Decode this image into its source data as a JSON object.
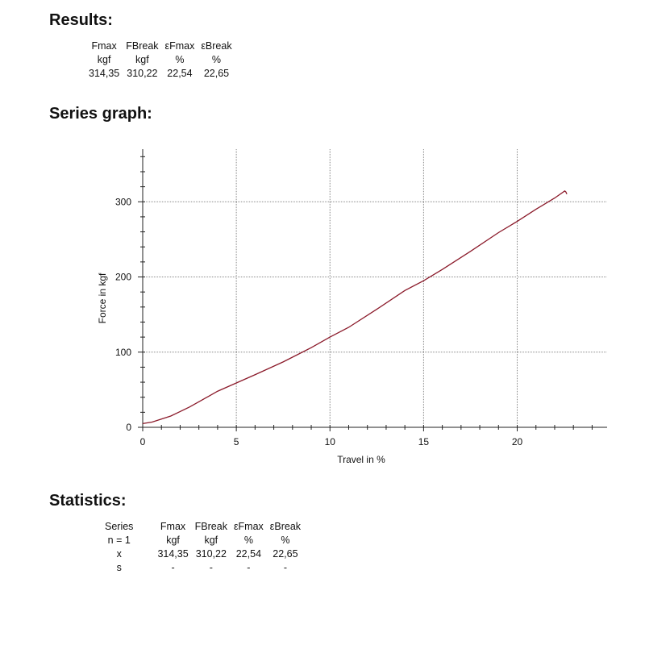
{
  "results": {
    "title": "Results:",
    "headers": [
      "Fmax",
      "FBreak",
      "εFmax",
      "εBreak"
    ],
    "units": [
      "kgf",
      "kgf",
      "%",
      "%"
    ],
    "values": [
      "314,35",
      "310,22",
      "22,54",
      "22,65"
    ]
  },
  "graph": {
    "title": "Series graph:"
  },
  "statistics": {
    "title": "Statistics:",
    "series_label": "Series",
    "n_label": "n = 1",
    "x_label": "x",
    "s_label": "s",
    "headers": [
      "Fmax",
      "FBreak",
      "εFmax",
      "εBreak"
    ],
    "units": [
      "kgf",
      "kgf",
      "%",
      "%"
    ],
    "x_values": [
      "314,35",
      "310,22",
      "22,54",
      "22,65"
    ],
    "s_values": [
      "-",
      "-",
      "-",
      "-"
    ]
  },
  "chart_data": {
    "type": "line",
    "xlabel": "Travel in %",
    "ylabel": "Force in kgf",
    "xlim": [
      0,
      24.8
    ],
    "ylim": [
      0,
      370
    ],
    "xticks": [
      0,
      5,
      10,
      15,
      20
    ],
    "yticks": [
      0,
      100,
      200,
      300
    ],
    "grid": true,
    "line_color": "#8b1a2a",
    "x": [
      0,
      0.5,
      1,
      1.5,
      2,
      2.5,
      3,
      3.5,
      4,
      5,
      6,
      7.5,
      9,
      10,
      11,
      12.5,
      14,
      15,
      16,
      17.5,
      19,
      20,
      21,
      22,
      22.54,
      22.6,
      22.65
    ],
    "y": [
      5,
      7,
      11,
      15,
      21,
      27,
      34,
      41,
      48,
      59,
      70,
      87,
      106,
      120,
      133,
      157,
      182,
      195,
      210,
      234,
      259,
      274,
      290,
      305,
      314.35,
      313,
      310.22
    ]
  }
}
